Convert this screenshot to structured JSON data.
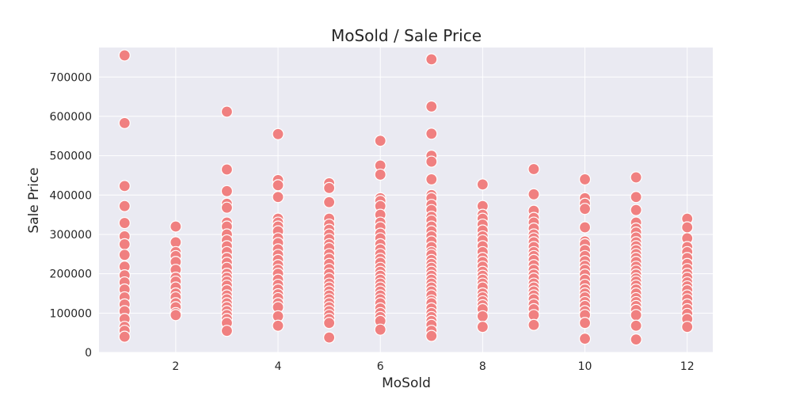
{
  "chart_data": {
    "type": "scatter",
    "title": "MoSold / Sale Price",
    "xlabel": "MoSold",
    "ylabel": "Sale Price",
    "xlim": [
      0.5,
      12.5
    ],
    "ylim": [
      0,
      775000
    ],
    "xticks": [
      2,
      4,
      6,
      8,
      10,
      12
    ],
    "yticks": [
      0,
      100000,
      200000,
      300000,
      400000,
      500000,
      600000,
      700000
    ],
    "grid": true,
    "marker_color": "#f08080",
    "background_color": "#eaeaf2",
    "points": [
      {
        "x": 1,
        "y": 755000
      },
      {
        "x": 1,
        "y": 583000
      },
      {
        "x": 1,
        "y": 423000
      },
      {
        "x": 1,
        "y": 372000
      },
      {
        "x": 1,
        "y": 329000
      },
      {
        "x": 1,
        "y": 295000
      },
      {
        "x": 1,
        "y": 275000
      },
      {
        "x": 1,
        "y": 248000
      },
      {
        "x": 1,
        "y": 218000
      },
      {
        "x": 1,
        "y": 196000
      },
      {
        "x": 1,
        "y": 178000
      },
      {
        "x": 1,
        "y": 160000
      },
      {
        "x": 1,
        "y": 140000
      },
      {
        "x": 1,
        "y": 122000
      },
      {
        "x": 1,
        "y": 105000
      },
      {
        "x": 1,
        "y": 85000
      },
      {
        "x": 1,
        "y": 65000
      },
      {
        "x": 1,
        "y": 55000
      },
      {
        "x": 1,
        "y": 40000
      },
      {
        "x": 2,
        "y": 320000
      },
      {
        "x": 2,
        "y": 280000
      },
      {
        "x": 2,
        "y": 255000
      },
      {
        "x": 2,
        "y": 245000
      },
      {
        "x": 2,
        "y": 230000
      },
      {
        "x": 2,
        "y": 210000
      },
      {
        "x": 2,
        "y": 190000
      },
      {
        "x": 2,
        "y": 180000
      },
      {
        "x": 2,
        "y": 165000
      },
      {
        "x": 2,
        "y": 150000
      },
      {
        "x": 2,
        "y": 140000
      },
      {
        "x": 2,
        "y": 125000
      },
      {
        "x": 2,
        "y": 115000
      },
      {
        "x": 2,
        "y": 100000
      },
      {
        "x": 2,
        "y": 95000
      },
      {
        "x": 3,
        "y": 612000
      },
      {
        "x": 3,
        "y": 465000
      },
      {
        "x": 3,
        "y": 410000
      },
      {
        "x": 3,
        "y": 378000
      },
      {
        "x": 3,
        "y": 368000
      },
      {
        "x": 3,
        "y": 330000
      },
      {
        "x": 3,
        "y": 320000
      },
      {
        "x": 3,
        "y": 300000
      },
      {
        "x": 3,
        "y": 285000
      },
      {
        "x": 3,
        "y": 270000
      },
      {
        "x": 3,
        "y": 255000
      },
      {
        "x": 3,
        "y": 240000
      },
      {
        "x": 3,
        "y": 228000
      },
      {
        "x": 3,
        "y": 215000
      },
      {
        "x": 3,
        "y": 200000
      },
      {
        "x": 3,
        "y": 190000
      },
      {
        "x": 3,
        "y": 180000
      },
      {
        "x": 3,
        "y": 170000
      },
      {
        "x": 3,
        "y": 158000
      },
      {
        "x": 3,
        "y": 145000
      },
      {
        "x": 3,
        "y": 135000
      },
      {
        "x": 3,
        "y": 125000
      },
      {
        "x": 3,
        "y": 115000
      },
      {
        "x": 3,
        "y": 105000
      },
      {
        "x": 3,
        "y": 95000
      },
      {
        "x": 3,
        "y": 85000
      },
      {
        "x": 3,
        "y": 75000
      },
      {
        "x": 3,
        "y": 55000
      },
      {
        "x": 4,
        "y": 555000
      },
      {
        "x": 4,
        "y": 438000
      },
      {
        "x": 4,
        "y": 425000
      },
      {
        "x": 4,
        "y": 395000
      },
      {
        "x": 4,
        "y": 340000
      },
      {
        "x": 4,
        "y": 330000
      },
      {
        "x": 4,
        "y": 320000
      },
      {
        "x": 4,
        "y": 308000
      },
      {
        "x": 4,
        "y": 290000
      },
      {
        "x": 4,
        "y": 278000
      },
      {
        "x": 4,
        "y": 262000
      },
      {
        "x": 4,
        "y": 248000
      },
      {
        "x": 4,
        "y": 235000
      },
      {
        "x": 4,
        "y": 222000
      },
      {
        "x": 4,
        "y": 210000
      },
      {
        "x": 4,
        "y": 200000
      },
      {
        "x": 4,
        "y": 185000
      },
      {
        "x": 4,
        "y": 172000
      },
      {
        "x": 4,
        "y": 160000
      },
      {
        "x": 4,
        "y": 148000
      },
      {
        "x": 4,
        "y": 138000
      },
      {
        "x": 4,
        "y": 125000
      },
      {
        "x": 4,
        "y": 115000
      },
      {
        "x": 4,
        "y": 92000
      },
      {
        "x": 4,
        "y": 68000
      },
      {
        "x": 5,
        "y": 430000
      },
      {
        "x": 5,
        "y": 418000
      },
      {
        "x": 5,
        "y": 382000
      },
      {
        "x": 5,
        "y": 340000
      },
      {
        "x": 5,
        "y": 325000
      },
      {
        "x": 5,
        "y": 312000
      },
      {
        "x": 5,
        "y": 300000
      },
      {
        "x": 5,
        "y": 288000
      },
      {
        "x": 5,
        "y": 275000
      },
      {
        "x": 5,
        "y": 265000
      },
      {
        "x": 5,
        "y": 250000
      },
      {
        "x": 5,
        "y": 238000
      },
      {
        "x": 5,
        "y": 225000
      },
      {
        "x": 5,
        "y": 212000
      },
      {
        "x": 5,
        "y": 200000
      },
      {
        "x": 5,
        "y": 188000
      },
      {
        "x": 5,
        "y": 175000
      },
      {
        "x": 5,
        "y": 165000
      },
      {
        "x": 5,
        "y": 155000
      },
      {
        "x": 5,
        "y": 145000
      },
      {
        "x": 5,
        "y": 135000
      },
      {
        "x": 5,
        "y": 125000
      },
      {
        "x": 5,
        "y": 115000
      },
      {
        "x": 5,
        "y": 105000
      },
      {
        "x": 5,
        "y": 95000
      },
      {
        "x": 5,
        "y": 85000
      },
      {
        "x": 5,
        "y": 75000
      },
      {
        "x": 5,
        "y": 38000
      },
      {
        "x": 6,
        "y": 538000
      },
      {
        "x": 6,
        "y": 475000
      },
      {
        "x": 6,
        "y": 452000
      },
      {
        "x": 6,
        "y": 392000
      },
      {
        "x": 6,
        "y": 385000
      },
      {
        "x": 6,
        "y": 372000
      },
      {
        "x": 6,
        "y": 350000
      },
      {
        "x": 6,
        "y": 330000
      },
      {
        "x": 6,
        "y": 318000
      },
      {
        "x": 6,
        "y": 302000
      },
      {
        "x": 6,
        "y": 290000
      },
      {
        "x": 6,
        "y": 275000
      },
      {
        "x": 6,
        "y": 262000
      },
      {
        "x": 6,
        "y": 250000
      },
      {
        "x": 6,
        "y": 238000
      },
      {
        "x": 6,
        "y": 228000
      },
      {
        "x": 6,
        "y": 215000
      },
      {
        "x": 6,
        "y": 205000
      },
      {
        "x": 6,
        "y": 195000
      },
      {
        "x": 6,
        "y": 185000
      },
      {
        "x": 6,
        "y": 175000
      },
      {
        "x": 6,
        "y": 165000
      },
      {
        "x": 6,
        "y": 155000
      },
      {
        "x": 6,
        "y": 145000
      },
      {
        "x": 6,
        "y": 135000
      },
      {
        "x": 6,
        "y": 125000
      },
      {
        "x": 6,
        "y": 112000
      },
      {
        "x": 6,
        "y": 100000
      },
      {
        "x": 6,
        "y": 90000
      },
      {
        "x": 6,
        "y": 80000
      },
      {
        "x": 6,
        "y": 58000
      },
      {
        "x": 7,
        "y": 745000
      },
      {
        "x": 7,
        "y": 625000
      },
      {
        "x": 7,
        "y": 556000
      },
      {
        "x": 7,
        "y": 500000
      },
      {
        "x": 7,
        "y": 485000
      },
      {
        "x": 7,
        "y": 440000
      },
      {
        "x": 7,
        "y": 400000
      },
      {
        "x": 7,
        "y": 392000
      },
      {
        "x": 7,
        "y": 375000
      },
      {
        "x": 7,
        "y": 362000
      },
      {
        "x": 7,
        "y": 345000
      },
      {
        "x": 7,
        "y": 335000
      },
      {
        "x": 7,
        "y": 320000
      },
      {
        "x": 7,
        "y": 308000
      },
      {
        "x": 7,
        "y": 295000
      },
      {
        "x": 7,
        "y": 282000
      },
      {
        "x": 7,
        "y": 268000
      },
      {
        "x": 7,
        "y": 255000
      },
      {
        "x": 7,
        "y": 248000
      },
      {
        "x": 7,
        "y": 235000
      },
      {
        "x": 7,
        "y": 225000
      },
      {
        "x": 7,
        "y": 215000
      },
      {
        "x": 7,
        "y": 205000
      },
      {
        "x": 7,
        "y": 195000
      },
      {
        "x": 7,
        "y": 185000
      },
      {
        "x": 7,
        "y": 175000
      },
      {
        "x": 7,
        "y": 165000
      },
      {
        "x": 7,
        "y": 155000
      },
      {
        "x": 7,
        "y": 145000
      },
      {
        "x": 7,
        "y": 132000
      },
      {
        "x": 7,
        "y": 125000
      },
      {
        "x": 7,
        "y": 112000
      },
      {
        "x": 7,
        "y": 100000
      },
      {
        "x": 7,
        "y": 90000
      },
      {
        "x": 7,
        "y": 80000
      },
      {
        "x": 7,
        "y": 70000
      },
      {
        "x": 7,
        "y": 55000
      },
      {
        "x": 7,
        "y": 42000
      },
      {
        "x": 8,
        "y": 427000
      },
      {
        "x": 8,
        "y": 372000
      },
      {
        "x": 8,
        "y": 350000
      },
      {
        "x": 8,
        "y": 340000
      },
      {
        "x": 8,
        "y": 325000
      },
      {
        "x": 8,
        "y": 310000
      },
      {
        "x": 8,
        "y": 295000
      },
      {
        "x": 8,
        "y": 285000
      },
      {
        "x": 8,
        "y": 270000
      },
      {
        "x": 8,
        "y": 255000
      },
      {
        "x": 8,
        "y": 240000
      },
      {
        "x": 8,
        "y": 230000
      },
      {
        "x": 8,
        "y": 218000
      },
      {
        "x": 8,
        "y": 205000
      },
      {
        "x": 8,
        "y": 195000
      },
      {
        "x": 8,
        "y": 185000
      },
      {
        "x": 8,
        "y": 175000
      },
      {
        "x": 8,
        "y": 165000
      },
      {
        "x": 8,
        "y": 150000
      },
      {
        "x": 8,
        "y": 140000
      },
      {
        "x": 8,
        "y": 130000
      },
      {
        "x": 8,
        "y": 120000
      },
      {
        "x": 8,
        "y": 110000
      },
      {
        "x": 8,
        "y": 92000
      },
      {
        "x": 8,
        "y": 65000
      },
      {
        "x": 9,
        "y": 466000
      },
      {
        "x": 9,
        "y": 402000
      },
      {
        "x": 9,
        "y": 360000
      },
      {
        "x": 9,
        "y": 342000
      },
      {
        "x": 9,
        "y": 330000
      },
      {
        "x": 9,
        "y": 315000
      },
      {
        "x": 9,
        "y": 300000
      },
      {
        "x": 9,
        "y": 290000
      },
      {
        "x": 9,
        "y": 280000
      },
      {
        "x": 9,
        "y": 268000
      },
      {
        "x": 9,
        "y": 255000
      },
      {
        "x": 9,
        "y": 245000
      },
      {
        "x": 9,
        "y": 235000
      },
      {
        "x": 9,
        "y": 222000
      },
      {
        "x": 9,
        "y": 210000
      },
      {
        "x": 9,
        "y": 198000
      },
      {
        "x": 9,
        "y": 188000
      },
      {
        "x": 9,
        "y": 175000
      },
      {
        "x": 9,
        "y": 165000
      },
      {
        "x": 9,
        "y": 155000
      },
      {
        "x": 9,
        "y": 145000
      },
      {
        "x": 9,
        "y": 135000
      },
      {
        "x": 9,
        "y": 122000
      },
      {
        "x": 9,
        "y": 110000
      },
      {
        "x": 9,
        "y": 95000
      },
      {
        "x": 9,
        "y": 70000
      },
      {
        "x": 10,
        "y": 440000
      },
      {
        "x": 10,
        "y": 392000
      },
      {
        "x": 10,
        "y": 378000
      },
      {
        "x": 10,
        "y": 365000
      },
      {
        "x": 10,
        "y": 318000
      },
      {
        "x": 10,
        "y": 282000
      },
      {
        "x": 10,
        "y": 275000
      },
      {
        "x": 10,
        "y": 260000
      },
      {
        "x": 10,
        "y": 245000
      },
      {
        "x": 10,
        "y": 232000
      },
      {
        "x": 10,
        "y": 220000
      },
      {
        "x": 10,
        "y": 210000
      },
      {
        "x": 10,
        "y": 198000
      },
      {
        "x": 10,
        "y": 185000
      },
      {
        "x": 10,
        "y": 172000
      },
      {
        "x": 10,
        "y": 160000
      },
      {
        "x": 10,
        "y": 150000
      },
      {
        "x": 10,
        "y": 140000
      },
      {
        "x": 10,
        "y": 128000
      },
      {
        "x": 10,
        "y": 118000
      },
      {
        "x": 10,
        "y": 105000
      },
      {
        "x": 10,
        "y": 95000
      },
      {
        "x": 10,
        "y": 75000
      },
      {
        "x": 10,
        "y": 35000
      },
      {
        "x": 11,
        "y": 445000
      },
      {
        "x": 11,
        "y": 395000
      },
      {
        "x": 11,
        "y": 362000
      },
      {
        "x": 11,
        "y": 330000
      },
      {
        "x": 11,
        "y": 315000
      },
      {
        "x": 11,
        "y": 305000
      },
      {
        "x": 11,
        "y": 292000
      },
      {
        "x": 11,
        "y": 280000
      },
      {
        "x": 11,
        "y": 270000
      },
      {
        "x": 11,
        "y": 260000
      },
      {
        "x": 11,
        "y": 250000
      },
      {
        "x": 11,
        "y": 240000
      },
      {
        "x": 11,
        "y": 230000
      },
      {
        "x": 11,
        "y": 218000
      },
      {
        "x": 11,
        "y": 208000
      },
      {
        "x": 11,
        "y": 198000
      },
      {
        "x": 11,
        "y": 188000
      },
      {
        "x": 11,
        "y": 180000
      },
      {
        "x": 11,
        "y": 170000
      },
      {
        "x": 11,
        "y": 160000
      },
      {
        "x": 11,
        "y": 150000
      },
      {
        "x": 11,
        "y": 138000
      },
      {
        "x": 11,
        "y": 128000
      },
      {
        "x": 11,
        "y": 118000
      },
      {
        "x": 11,
        "y": 108000
      },
      {
        "x": 11,
        "y": 95000
      },
      {
        "x": 11,
        "y": 68000
      },
      {
        "x": 11,
        "y": 33000
      },
      {
        "x": 12,
        "y": 340000
      },
      {
        "x": 12,
        "y": 318000
      },
      {
        "x": 12,
        "y": 290000
      },
      {
        "x": 12,
        "y": 268000
      },
      {
        "x": 12,
        "y": 255000
      },
      {
        "x": 12,
        "y": 240000
      },
      {
        "x": 12,
        "y": 225000
      },
      {
        "x": 12,
        "y": 212000
      },
      {
        "x": 12,
        "y": 200000
      },
      {
        "x": 12,
        "y": 190000
      },
      {
        "x": 12,
        "y": 178000
      },
      {
        "x": 12,
        "y": 168000
      },
      {
        "x": 12,
        "y": 158000
      },
      {
        "x": 12,
        "y": 145000
      },
      {
        "x": 12,
        "y": 135000
      },
      {
        "x": 12,
        "y": 122000
      },
      {
        "x": 12,
        "y": 110000
      },
      {
        "x": 12,
        "y": 98000
      },
      {
        "x": 12,
        "y": 85000
      },
      {
        "x": 12,
        "y": 65000
      }
    ]
  }
}
